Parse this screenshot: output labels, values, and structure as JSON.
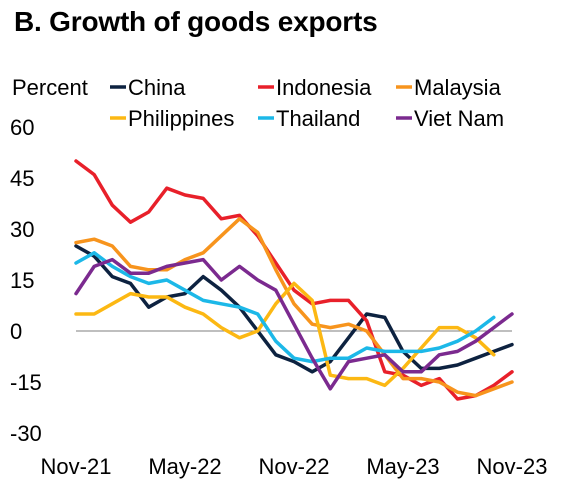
{
  "chart_data": {
    "type": "line",
    "title": "B. Growth of goods exports",
    "ylabel": "Percent",
    "ylim": [
      -30,
      60
    ],
    "yticks": [
      -30,
      -15,
      0,
      15,
      30,
      45,
      60
    ],
    "x": [
      "Nov-21",
      "Dec-21",
      "Jan-22",
      "Feb-22",
      "Mar-22",
      "Apr-22",
      "May-22",
      "Jun-22",
      "Jul-22",
      "Aug-22",
      "Sep-22",
      "Oct-22",
      "Nov-22",
      "Dec-22",
      "Jan-23",
      "Feb-23",
      "Mar-23",
      "Apr-23",
      "May-23",
      "Jun-23",
      "Jul-23",
      "Aug-23",
      "Sep-23",
      "Oct-23",
      "Nov-23"
    ],
    "xticks": [
      "Nov-21",
      "May-22",
      "Nov-22",
      "May-23",
      "Nov-23"
    ],
    "zero_line": true,
    "legend_position": "top",
    "series": [
      {
        "name": "China",
        "color": "#0d2240",
        "values": [
          25,
          22,
          16,
          14,
          7,
          10,
          11,
          16,
          12,
          7,
          0,
          -7,
          -9,
          -12,
          -9,
          -2,
          5,
          4,
          -6,
          -11,
          -11,
          -10,
          -8,
          -6,
          -4
        ]
      },
      {
        "name": "Indonesia",
        "color": "#e8202a",
        "values": [
          50,
          46,
          37,
          32,
          35,
          42,
          40,
          39,
          33,
          34,
          28,
          20,
          12,
          8,
          9,
          9,
          3,
          -12,
          -13,
          -16,
          -14,
          -20,
          -19,
          -16,
          -12
        ]
      },
      {
        "name": "Malaysia",
        "color": "#f7941d",
        "values": [
          26,
          27,
          25,
          19,
          18,
          18,
          21,
          23,
          28,
          33,
          29,
          18,
          8,
          2,
          1,
          2,
          0,
          -7,
          -14,
          -14,
          -15,
          -18,
          -19,
          -17,
          -15
        ]
      },
      {
        "name": "Philippines",
        "color": "#fcb813",
        "values": [
          5,
          5,
          8,
          11,
          10,
          10,
          7,
          5,
          1,
          -2,
          0,
          8,
          14,
          9,
          -13,
          -14,
          -14,
          -16,
          -11,
          -5,
          1,
          1,
          -2,
          -7,
          null
        ]
      },
      {
        "name": "Thailand",
        "color": "#1cb8e8",
        "values": [
          20,
          23,
          19,
          16,
          14,
          15,
          12,
          9,
          8,
          7,
          5,
          -3,
          -8,
          -9,
          -8,
          -8,
          -5,
          -6,
          -6,
          -6,
          -5,
          -3,
          0,
          4,
          null
        ]
      },
      {
        "name": "Viet Nam",
        "color": "#7b2a8f",
        "values": [
          11,
          19,
          21,
          17,
          17,
          19,
          20,
          21,
          15,
          19,
          15,
          12,
          2,
          -8,
          -17,
          -9,
          -8,
          -7,
          -12,
          -12,
          -7,
          -6,
          -3,
          1,
          5
        ]
      }
    ]
  }
}
